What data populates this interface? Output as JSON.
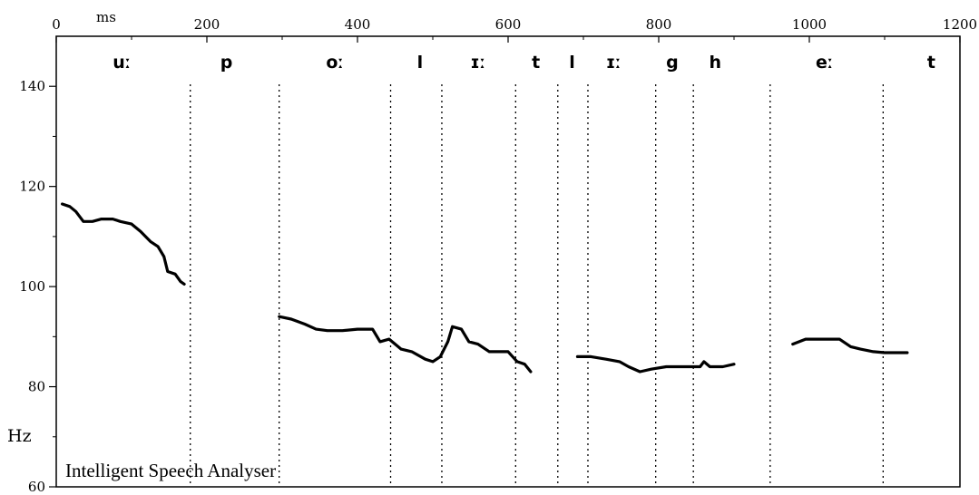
{
  "chart_data": {
    "type": "line",
    "title": "",
    "xlabel": "ms",
    "ylabel": "Hz",
    "xlim": [
      0,
      1200
    ],
    "ylim": [
      60,
      150
    ],
    "x_ticks": [
      0,
      200,
      400,
      600,
      800,
      1000,
      1200
    ],
    "y_ticks": [
      60,
      80,
      100,
      120,
      140
    ],
    "caption": "Intelligent Speech Analyser",
    "grid": false,
    "segment_boundaries_ms": [
      178,
      296,
      444,
      512,
      610,
      666,
      706,
      796,
      846,
      948,
      1098
    ],
    "segment_labels": [
      {
        "label": "uː",
        "x": 87
      },
      {
        "label": "p",
        "x": 226
      },
      {
        "label": "oː",
        "x": 370
      },
      {
        "label": "l",
        "x": 483
      },
      {
        "label": "ɪː",
        "x": 560
      },
      {
        "label": "t",
        "x": 637
      },
      {
        "label": "l",
        "x": 685
      },
      {
        "label": "ɪː",
        "x": 740
      },
      {
        "label": "g",
        "x": 818
      },
      {
        "label": "h",
        "x": 875
      },
      {
        "label": "eː",
        "x": 1020
      },
      {
        "label": "t",
        "x": 1162
      }
    ],
    "series": [
      {
        "name": "",
        "points": [
          [
            8,
            116.5
          ],
          [
            18,
            116
          ],
          [
            26,
            115
          ],
          [
            36,
            113
          ],
          [
            48,
            113
          ],
          [
            60,
            113.5
          ],
          [
            75,
            113.5
          ],
          [
            85,
            113
          ],
          [
            100,
            112.5
          ],
          [
            112,
            111
          ],
          [
            125,
            109
          ],
          [
            135,
            108
          ],
          [
            143,
            106
          ],
          [
            148,
            103
          ],
          [
            158,
            102.5
          ],
          [
            165,
            101
          ],
          [
            170,
            100.5
          ]
        ]
      },
      {
        "name": "",
        "points": [
          [
            296,
            94
          ],
          [
            312,
            93.5
          ],
          [
            330,
            92.5
          ],
          [
            345,
            91.5
          ],
          [
            360,
            91.2
          ],
          [
            380,
            91.2
          ],
          [
            400,
            91.5
          ],
          [
            420,
            91.5
          ],
          [
            430,
            89
          ],
          [
            442,
            89.5
          ],
          [
            458,
            87.5
          ],
          [
            472,
            87
          ],
          [
            490,
            85.5
          ],
          [
            500,
            85
          ],
          [
            510,
            86
          ],
          [
            520,
            89
          ],
          [
            526,
            92
          ],
          [
            538,
            91.5
          ],
          [
            548,
            89
          ],
          [
            560,
            88.5
          ],
          [
            575,
            87
          ],
          [
            600,
            87
          ],
          [
            612,
            85
          ],
          [
            622,
            84.5
          ],
          [
            630,
            83
          ]
        ]
      },
      {
        "name": "",
        "points": [
          [
            692,
            86
          ],
          [
            710,
            86
          ],
          [
            730,
            85.5
          ],
          [
            748,
            85
          ],
          [
            760,
            84
          ],
          [
            775,
            83
          ],
          [
            790,
            83.5
          ],
          [
            810,
            84
          ],
          [
            840,
            84
          ],
          [
            855,
            84
          ],
          [
            860,
            85
          ],
          [
            868,
            84
          ],
          [
            885,
            84
          ],
          [
            900,
            84.5
          ]
        ]
      },
      {
        "name": "",
        "points": [
          [
            978,
            88.5
          ],
          [
            995,
            89.5
          ],
          [
            1015,
            89.5
          ],
          [
            1040,
            89.5
          ],
          [
            1055,
            88
          ],
          [
            1068,
            87.5
          ],
          [
            1085,
            87
          ],
          [
            1100,
            86.8
          ],
          [
            1120,
            86.8
          ],
          [
            1130,
            86.8
          ]
        ]
      }
    ]
  }
}
